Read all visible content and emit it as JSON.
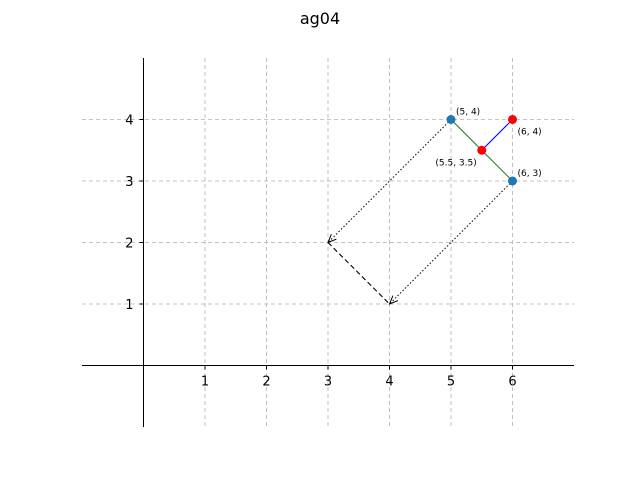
{
  "chart_data": {
    "type": "scatter",
    "title": "ag04",
    "xlabel": "",
    "ylabel": "",
    "xlim": [
      -1,
      7
    ],
    "ylim": [
      -1,
      5
    ],
    "xticks": [
      "1",
      "2",
      "3",
      "4",
      "5",
      "6"
    ],
    "yticks": [
      "1",
      "2",
      "3",
      "4"
    ],
    "grid": true,
    "points": [
      {
        "x": 5,
        "y": 4,
        "color": "#1f77b4",
        "label": "(5, 4)"
      },
      {
        "x": 6,
        "y": 3,
        "color": "#1f77b4",
        "label": "(6, 3)"
      },
      {
        "x": 5.5,
        "y": 3.5,
        "color": "#ff0000",
        "label": "(5.5, 3.5)"
      },
      {
        "x": 6,
        "y": 4,
        "color": "#ff0000",
        "label": "(6, 4)"
      }
    ],
    "segments": [
      {
        "from": [
          5,
          4
        ],
        "to": [
          6,
          3
        ],
        "color": "#2e7d32",
        "style": "solid"
      },
      {
        "from": [
          5.5,
          3.5
        ],
        "to": [
          6,
          4
        ],
        "color": "#0000ff",
        "style": "solid"
      },
      {
        "from": [
          3,
          2
        ],
        "to": [
          4,
          1
        ],
        "color": "#000000",
        "style": "dashed"
      }
    ],
    "arrows": [
      {
        "from": [
          5,
          4
        ],
        "to": [
          3,
          2
        ],
        "color": "#000000",
        "style": "dotted"
      },
      {
        "from": [
          6,
          3
        ],
        "to": [
          4,
          1
        ],
        "color": "#000000",
        "style": "dotted"
      }
    ]
  }
}
